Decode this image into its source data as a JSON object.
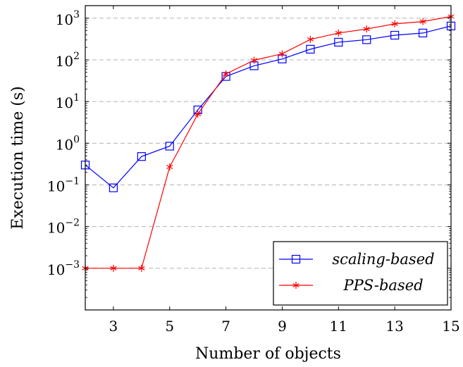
{
  "chart_data": {
    "type": "line",
    "xlabel": "Number of objects",
    "ylabel": "Execution time (s)",
    "y_scale": "log",
    "xlim": [
      2,
      15
    ],
    "ylim": [
      0.0001,
      2000
    ],
    "x_ticks": [
      3,
      5,
      7,
      9,
      11,
      13,
      15
    ],
    "y_ticks": [
      {
        "value": 0.001,
        "mantissa": "10",
        "exponent": "−3"
      },
      {
        "value": 0.01,
        "mantissa": "10",
        "exponent": "−2"
      },
      {
        "value": 0.1,
        "mantissa": "10",
        "exponent": "−1"
      },
      {
        "value": 1,
        "mantissa": "10",
        "exponent": "0"
      },
      {
        "value": 10,
        "mantissa": "10",
        "exponent": "1"
      },
      {
        "value": 100,
        "mantissa": "10",
        "exponent": "2"
      },
      {
        "value": 1000,
        "mantissa": "10",
        "exponent": "3"
      }
    ],
    "grid": "horizontal dashed at major y ticks",
    "legend_position": "bottom-right",
    "x": [
      2,
      3,
      4,
      5,
      6,
      7,
      8,
      9,
      10,
      11,
      12,
      13,
      14,
      15
    ],
    "series": [
      {
        "name": "scaling-based",
        "color": "#0000ff",
        "marker": "square",
        "values": [
          0.3,
          0.085,
          0.48,
          0.85,
          6.3,
          40,
          72,
          105,
          180,
          265,
          305,
          390,
          440,
          650
        ]
      },
      {
        "name": "PPS-based",
        "color": "#ff0000",
        "marker": "star",
        "values": [
          0.001,
          0.001,
          0.001,
          0.27,
          5,
          46,
          98,
          140,
          310,
          440,
          550,
          730,
          830,
          1100
        ]
      }
    ]
  }
}
